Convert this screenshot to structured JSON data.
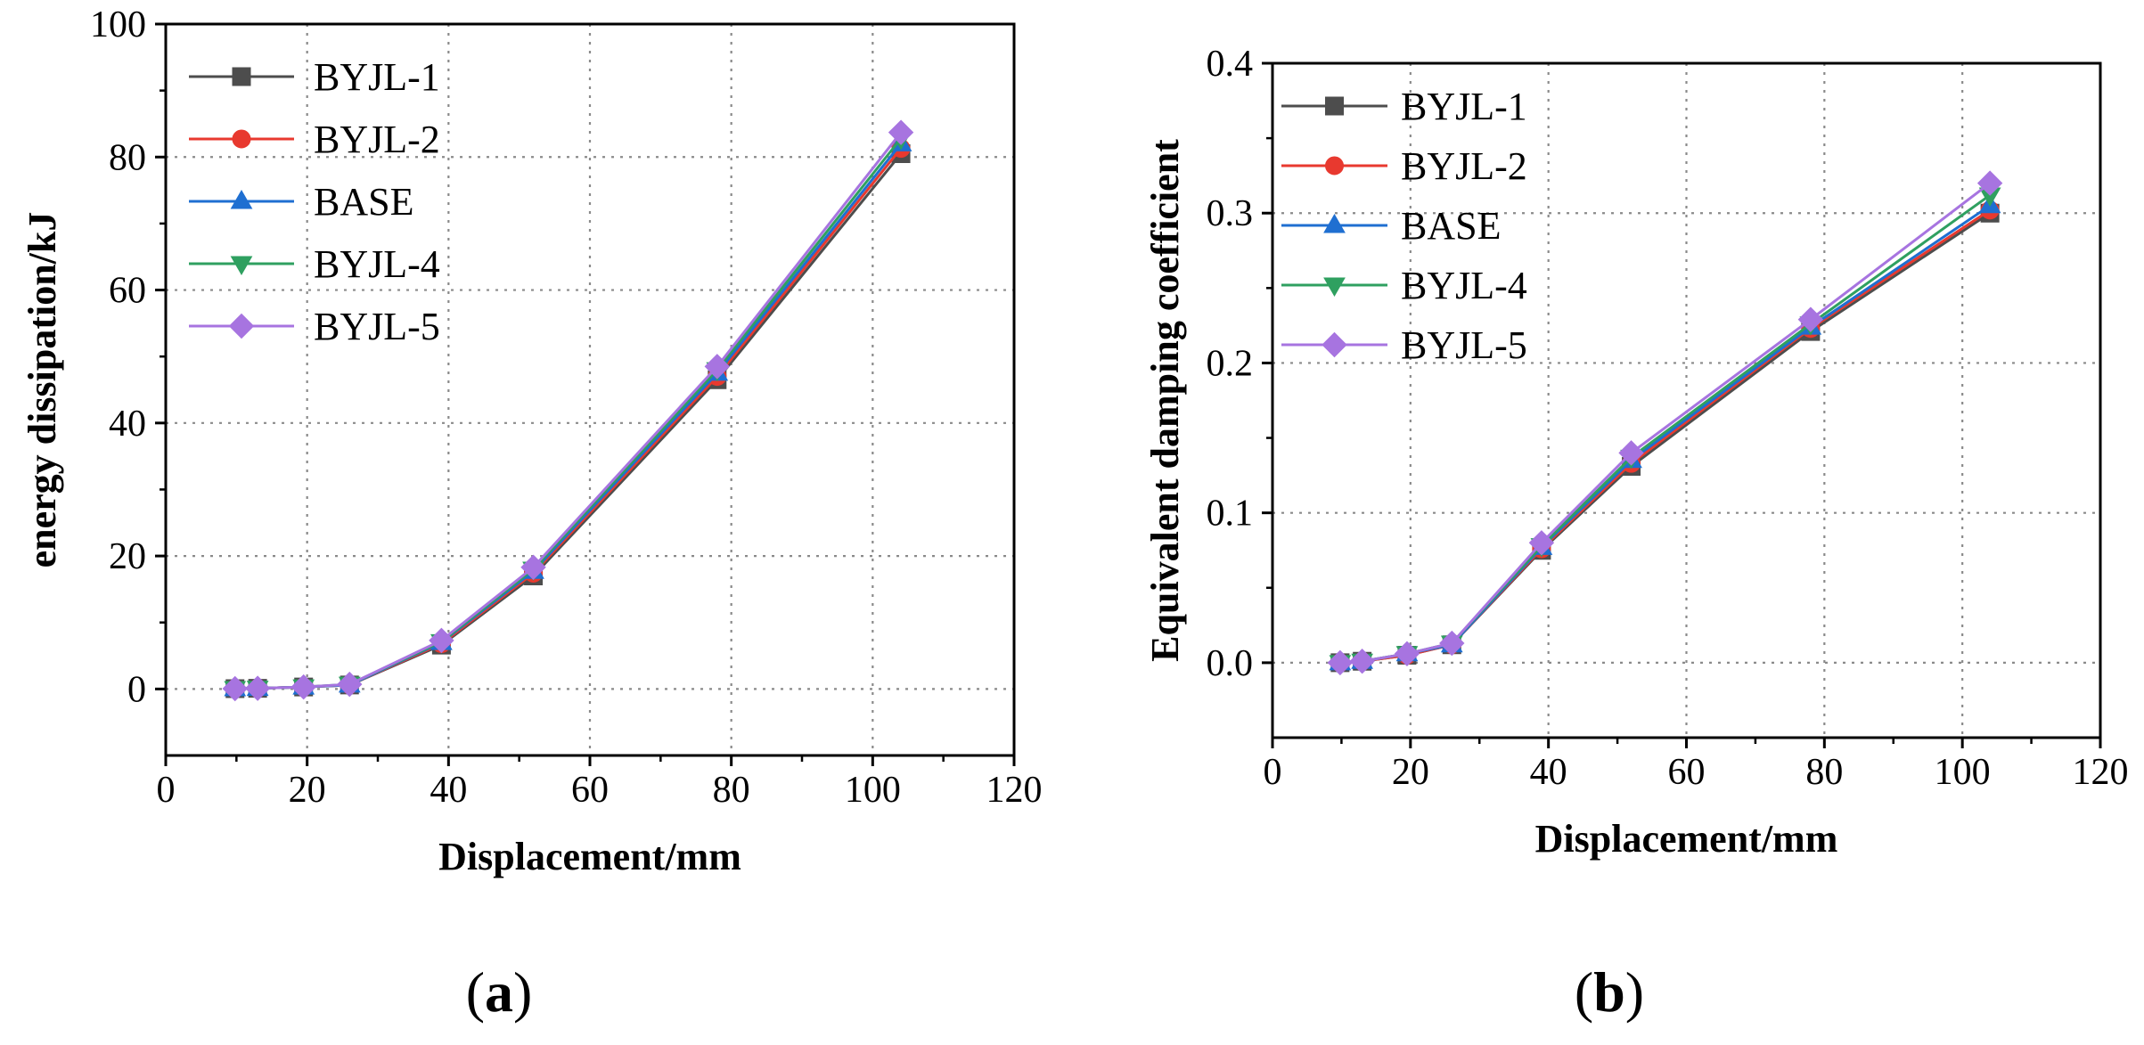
{
  "chart_data": [
    {
      "type": "line",
      "panel_label": "a",
      "title": "",
      "xlabel": "Displacement/mm",
      "ylabel": "energy dissipation/kJ",
      "xlim": [
        0,
        120
      ],
      "ylim": [
        -10,
        100
      ],
      "xticks": [
        0,
        20,
        40,
        60,
        80,
        100,
        120
      ],
      "yticks": [
        0,
        20,
        40,
        60,
        80,
        100
      ],
      "xtick_labels": [
        "0",
        "20",
        "40",
        "60",
        "80",
        "100",
        "120"
      ],
      "ytick_labels": [
        "0",
        "20",
        "40",
        "60",
        "80",
        "100"
      ],
      "grid": true,
      "legend_position": "top-left",
      "x": [
        9.8,
        13,
        19.5,
        26,
        39,
        52,
        78,
        104
      ],
      "series": [
        {
          "name": "BYJL-1",
          "color": "#4d4d4d",
          "marker": "square",
          "values": [
            0.05,
            0.1,
            0.3,
            0.6,
            6.6,
            17.0,
            46.5,
            80.5
          ]
        },
        {
          "name": "BYJL-2",
          "color": "#e8392f",
          "marker": "circle",
          "values": [
            0.05,
            0.1,
            0.3,
            0.6,
            6.8,
            17.4,
            47.0,
            81.3
          ]
        },
        {
          "name": "BASE",
          "color": "#1f6fd1",
          "marker": "triangle-up",
          "values": [
            0.05,
            0.1,
            0.3,
            0.6,
            7.0,
            17.7,
            47.5,
            82.0
          ]
        },
        {
          "name": "BYJL-4",
          "color": "#2fa060",
          "marker": "triangle-down",
          "values": [
            0.05,
            0.1,
            0.3,
            0.7,
            7.1,
            18.0,
            48.0,
            82.8
          ]
        },
        {
          "name": "BYJL-5",
          "color": "#a774e0",
          "marker": "diamond",
          "values": [
            0.05,
            0.1,
            0.3,
            0.7,
            7.3,
            18.3,
            48.5,
            83.7
          ]
        }
      ]
    },
    {
      "type": "line",
      "panel_label": "b",
      "title": "",
      "xlabel": "Displacement/mm",
      "ylabel": "Equivalent damping coefficient",
      "xlim": [
        0,
        120
      ],
      "ylim": [
        -0.05,
        0.4
      ],
      "xticks": [
        0,
        20,
        40,
        60,
        80,
        100,
        120
      ],
      "yticks": [
        0.0,
        0.1,
        0.2,
        0.3,
        0.4
      ],
      "xtick_labels": [
        "0",
        "20",
        "40",
        "60",
        "80",
        "100",
        "120"
      ],
      "ytick_labels": [
        "0.0",
        "0.1",
        "0.2",
        "0.3",
        "0.4"
      ],
      "grid": true,
      "legend_position": "top-left",
      "x": [
        9.8,
        13,
        19.5,
        26,
        39,
        52,
        78,
        104
      ],
      "series": [
        {
          "name": "BYJL-1",
          "color": "#4d4d4d",
          "marker": "square",
          "values": [
            0.0,
            0.001,
            0.005,
            0.012,
            0.075,
            0.131,
            0.221,
            0.3
          ]
        },
        {
          "name": "BYJL-2",
          "color": "#e8392f",
          "marker": "circle",
          "values": [
            0.0,
            0.001,
            0.005,
            0.012,
            0.076,
            0.133,
            0.223,
            0.302
          ]
        },
        {
          "name": "BASE",
          "color": "#1f6fd1",
          "marker": "triangle-up",
          "values": [
            0.0,
            0.001,
            0.006,
            0.012,
            0.077,
            0.135,
            0.224,
            0.305
          ]
        },
        {
          "name": "BYJL-4",
          "color": "#2fa060",
          "marker": "triangle-down",
          "values": [
            0.0,
            0.001,
            0.006,
            0.013,
            0.078,
            0.137,
            0.226,
            0.312
          ]
        },
        {
          "name": "BYJL-5",
          "color": "#a774e0",
          "marker": "diamond",
          "values": [
            0.0,
            0.001,
            0.006,
            0.013,
            0.08,
            0.14,
            0.229,
            0.32
          ]
        }
      ]
    }
  ]
}
